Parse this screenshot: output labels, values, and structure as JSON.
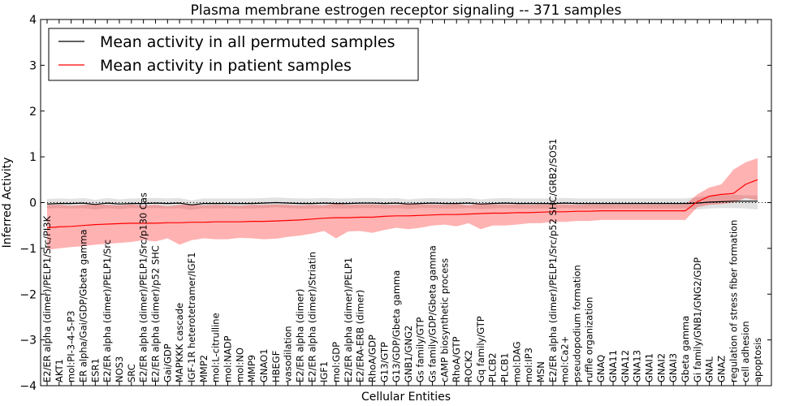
{
  "chart_data": {
    "type": "line",
    "title": "Plasma membrane estrogen receptor signaling -- 371 samples",
    "xlabel": "Cellular Entities",
    "ylabel": "Inferred Activity",
    "ylim": [
      -4,
      4
    ],
    "yticks": [
      "−4",
      "−3",
      "−2",
      "−1",
      "0",
      "1",
      "2",
      "3",
      "4"
    ],
    "reference_line": 0,
    "legend": {
      "placement": "top-left",
      "entries": [
        {
          "label": "Mean activity in all permuted samples",
          "color": "#000000"
        },
        {
          "label": "Mean activity in patient samples",
          "color": "#ff0000"
        }
      ]
    },
    "categories": [
      "E2/ER alpha (dimer)/PELP1/Src/PI3K",
      "AKT1",
      "mol:PI-3-4-5-P3",
      "ER alpha/Gai/GDP/Gbeta gamma",
      "ESR1",
      "E2/ER alpha (dimer)/PELP1/Src",
      "NOS3",
      "SRC",
      "E2/ER alpha (dimer)/PELP1/Src/p130 Cas",
      "E2/ER alpha (dimer)/p52 SHC",
      "Gai/GDP",
      "MAPKKK cascade",
      "IGF-1R heterotetramer/IGF1",
      "MMP2",
      "mol:L-citrulline",
      "mol:NADP",
      "mol:NO",
      "MMP9",
      "GNAO1",
      "HBEGF",
      "vasodilation",
      "E2/ER alpha (dimer)",
      "E2/ER alpha (dimer)/Striatin",
      "IGF1",
      "mol:GDP",
      "E2/ER alpha (dimer)/PELP1",
      "E2/ERA-ERB (dimer)",
      "RhoA/GDP",
      "G13/GTP",
      "G13/GDP/Gbeta gamma",
      "GNB1/GNG2",
      "Gs family/GTP",
      "Gs family/GDP/Gbeta gamma",
      "cAMP biosynthetic process",
      "RhoA/GTP",
      "ROCK2",
      "Gq family/GTP",
      "PLCB2",
      "PLCB1",
      "mol:DAG",
      "mol:IP3",
      "MSN",
      "E2/ER alpha (dimer)/PELP1/Src/p52 SHC/GRB2/SOS1",
      "mol:Ca2+",
      "pseudopodium formation",
      "ruffle organization",
      "GNAQ",
      "GNA11",
      "GNA12",
      "GNA13",
      "GNAI1",
      "GNAI2",
      "GNAI3",
      "Gbeta gamma",
      "Gi family/GNB1/GNG2/GDP",
      "GNAL",
      "GNAZ",
      "regulation of stress fiber formation",
      "cell adhesion",
      "apoptosis"
    ],
    "series": [
      {
        "name": "Mean activity in all permuted samples",
        "color": "#000000",
        "values": [
          -0.03,
          -0.02,
          -0.02,
          -0.01,
          -0.04,
          -0.01,
          -0.03,
          -0.02,
          -0.02,
          -0.01,
          -0.02,
          -0.01,
          -0.05,
          -0.02,
          -0.02,
          -0.02,
          -0.02,
          -0.02,
          -0.01,
          0.0,
          -0.01,
          -0.02,
          -0.02,
          -0.01,
          -0.02,
          -0.02,
          -0.01,
          -0.01,
          -0.02,
          -0.01,
          -0.03,
          -0.02,
          -0.01,
          -0.02,
          -0.02,
          -0.01,
          -0.03,
          -0.02,
          -0.01,
          -0.02,
          -0.02,
          -0.02,
          -0.02,
          -0.01,
          -0.02,
          -0.02,
          -0.02,
          -0.02,
          -0.02,
          -0.02,
          -0.02,
          -0.02,
          -0.02,
          -0.02,
          -0.01,
          0.01,
          0.02,
          0.03,
          0.03,
          0.03
        ],
        "lower": [
          -0.13,
          -0.12,
          -0.13,
          -0.12,
          -0.15,
          -0.12,
          -0.14,
          -0.12,
          -0.12,
          -0.12,
          -0.13,
          -0.12,
          -0.16,
          -0.12,
          -0.13,
          -0.12,
          -0.13,
          -0.13,
          -0.12,
          -0.1,
          -0.12,
          -0.13,
          -0.13,
          -0.12,
          -0.13,
          -0.13,
          -0.12,
          -0.12,
          -0.13,
          -0.12,
          -0.14,
          -0.12,
          -0.12,
          -0.13,
          -0.13,
          -0.12,
          -0.14,
          -0.13,
          -0.12,
          -0.13,
          -0.13,
          -0.13,
          -0.13,
          -0.12,
          -0.13,
          -0.13,
          -0.13,
          -0.13,
          -0.13,
          -0.13,
          -0.13,
          -0.13,
          -0.13,
          -0.13,
          -0.15,
          -0.13,
          -0.12,
          -0.12,
          -0.13,
          -0.15
        ],
        "upper": [
          0.08,
          0.09,
          0.08,
          0.1,
          0.06,
          0.1,
          0.07,
          0.09,
          0.09,
          0.1,
          0.09,
          0.1,
          0.05,
          0.09,
          0.09,
          0.09,
          0.09,
          0.09,
          0.1,
          0.11,
          0.1,
          0.09,
          0.09,
          0.1,
          0.09,
          0.09,
          0.1,
          0.1,
          0.09,
          0.1,
          0.07,
          0.09,
          0.1,
          0.09,
          0.09,
          0.1,
          0.07,
          0.09,
          0.1,
          0.09,
          0.09,
          0.09,
          0.09,
          0.1,
          0.09,
          0.09,
          0.09,
          0.09,
          0.09,
          0.09,
          0.09,
          0.09,
          0.09,
          0.09,
          0.12,
          0.15,
          0.16,
          0.17,
          0.16,
          0.16
        ]
      },
      {
        "name": "Mean activity in patient samples",
        "color": "#ff0000",
        "values": [
          -0.55,
          -0.53,
          -0.52,
          -0.5,
          -0.48,
          -0.47,
          -0.46,
          -0.45,
          -0.45,
          -0.45,
          -0.44,
          -0.44,
          -0.43,
          -0.43,
          -0.42,
          -0.42,
          -0.42,
          -0.41,
          -0.41,
          -0.4,
          -0.39,
          -0.38,
          -0.36,
          -0.34,
          -0.33,
          -0.33,
          -0.32,
          -0.32,
          -0.3,
          -0.29,
          -0.29,
          -0.28,
          -0.27,
          -0.26,
          -0.26,
          -0.25,
          -0.24,
          -0.23,
          -0.23,
          -0.22,
          -0.22,
          -0.21,
          -0.2,
          -0.2,
          -0.19,
          -0.19,
          -0.18,
          -0.18,
          -0.18,
          -0.18,
          -0.18,
          -0.18,
          -0.18,
          -0.18,
          0.02,
          0.14,
          0.18,
          0.2,
          0.4,
          0.5
        ],
        "lower": [
          -1.03,
          -1.0,
          -0.97,
          -0.95,
          -0.92,
          -0.9,
          -0.88,
          -0.86,
          -0.82,
          -0.85,
          -0.78,
          -0.92,
          -0.82,
          -0.78,
          -0.8,
          -0.8,
          -0.77,
          -0.78,
          -0.8,
          -0.79,
          -0.75,
          -0.72,
          -0.68,
          -0.62,
          -0.78,
          -0.63,
          -0.62,
          -0.66,
          -0.6,
          -0.55,
          -0.58,
          -0.55,
          -0.5,
          -0.48,
          -0.52,
          -0.45,
          -0.58,
          -0.5,
          -0.5,
          -0.48,
          -0.45,
          -0.45,
          -0.42,
          -0.42,
          -0.4,
          -0.4,
          -0.38,
          -0.38,
          -0.38,
          -0.38,
          -0.38,
          -0.38,
          -0.38,
          -0.38,
          -0.1,
          -0.05,
          -0.03,
          0.0,
          0.1,
          0.05
        ],
        "upper": [
          -0.05,
          -0.05,
          -0.07,
          -0.05,
          -0.04,
          -0.05,
          -0.06,
          -0.04,
          -0.07,
          -0.05,
          -0.08,
          -0.05,
          -0.04,
          -0.06,
          -0.05,
          -0.06,
          -0.07,
          -0.05,
          -0.05,
          -0.04,
          -0.05,
          -0.06,
          -0.05,
          -0.06,
          -0.02,
          -0.05,
          -0.04,
          -0.04,
          -0.05,
          -0.05,
          -0.03,
          -0.04,
          -0.04,
          -0.05,
          -0.03,
          -0.06,
          -0.02,
          -0.04,
          -0.04,
          -0.04,
          -0.05,
          -0.04,
          -0.04,
          -0.04,
          -0.05,
          -0.04,
          -0.04,
          -0.04,
          -0.04,
          -0.04,
          -0.04,
          -0.04,
          -0.04,
          -0.04,
          0.18,
          0.33,
          0.4,
          0.72,
          0.88,
          0.97
        ]
      }
    ]
  }
}
